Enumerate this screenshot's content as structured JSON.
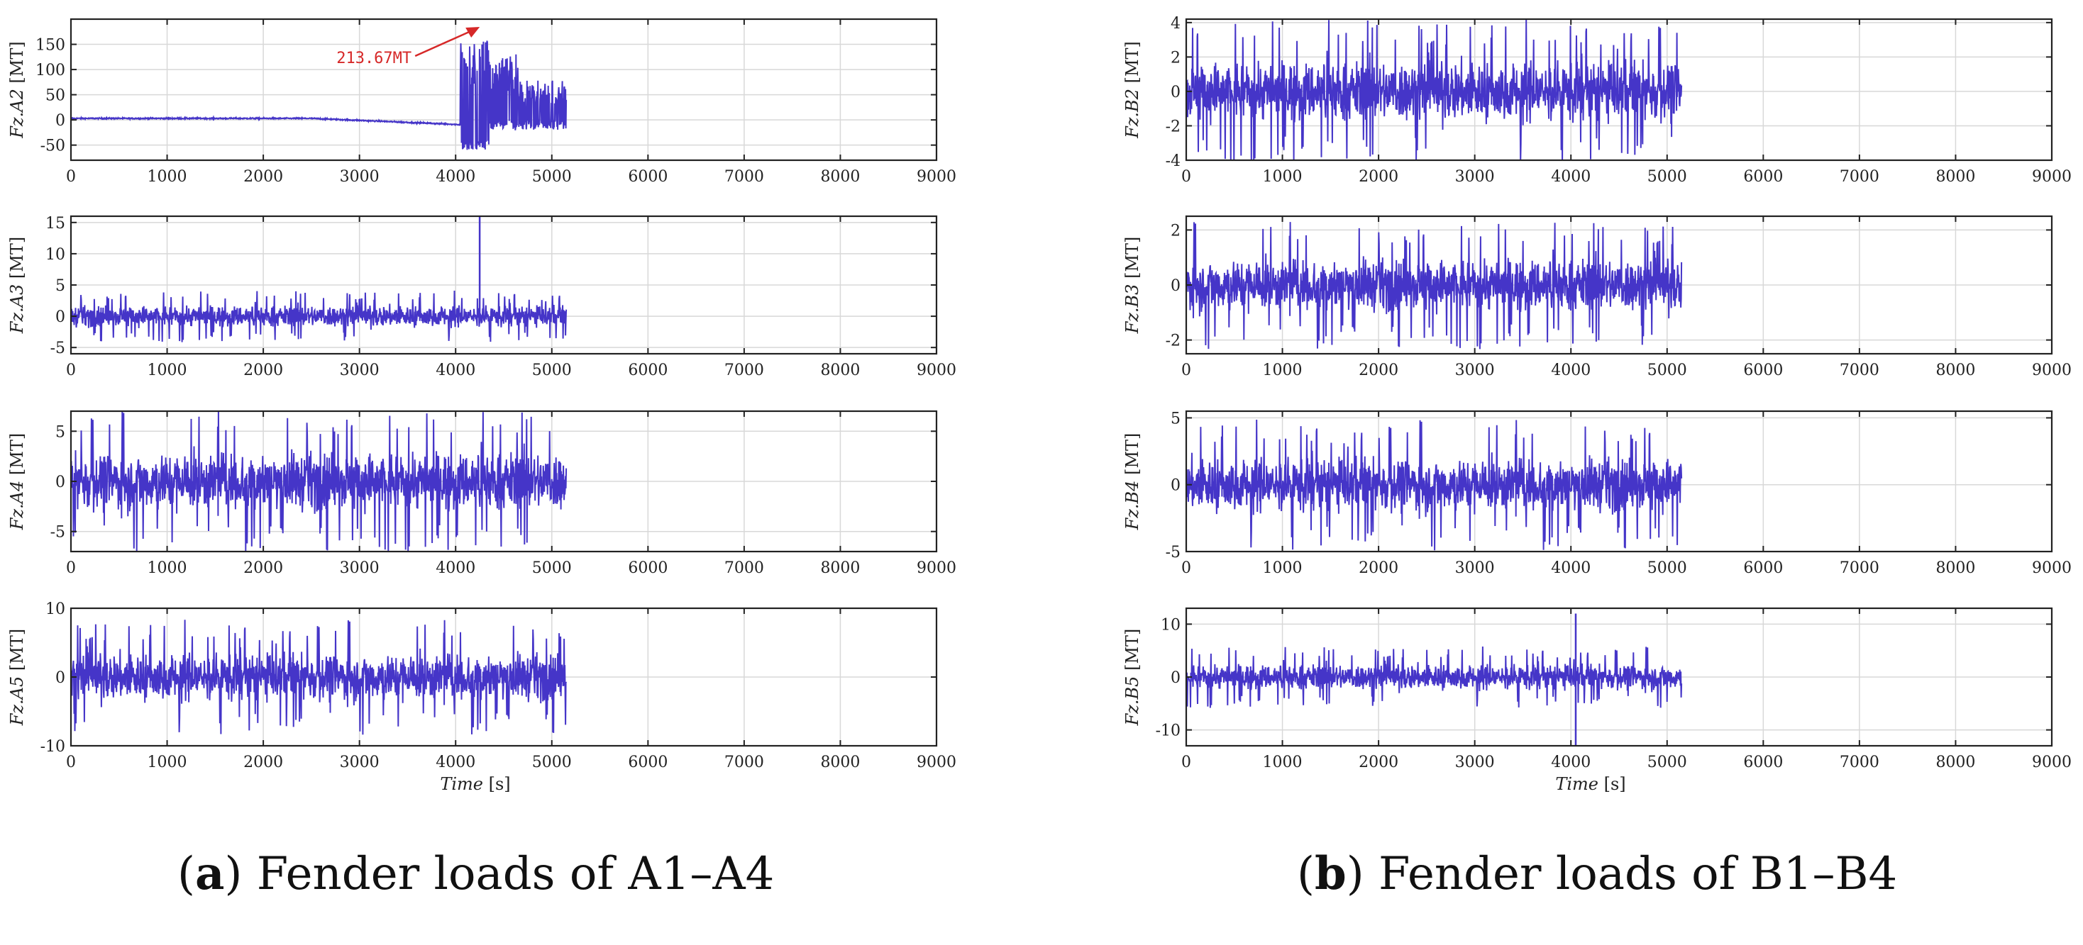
{
  "style": {
    "series_color": "#4535c8",
    "annotation_color": "#d62828",
    "grid_color": "#d8d8d8"
  },
  "captions": [
    {
      "letter": "a",
      "text": ") Fender loads of A1–A4",
      "open": "("
    },
    {
      "letter": "b",
      "text": ") Fender loads of B1–B4",
      "open": "("
    }
  ],
  "chart_data": [
    {
      "type": "line",
      "panel_group": "a",
      "ylabel_prefix": "Fz.",
      "ylabel_id": "A2",
      "ylabel_unit": " [MT]",
      "xlim": [
        0,
        9000
      ],
      "ylim": [
        -80,
        200
      ],
      "xticks": [
        0,
        1000,
        2000,
        3000,
        4000,
        5000,
        6000,
        7000,
        8000,
        9000
      ],
      "yticks": [
        -50,
        0,
        50,
        100,
        150
      ],
      "series": [
        {
          "data_end": 5150,
          "baseline": [
            [
              0,
              3
            ],
            [
              2500,
              3
            ],
            [
              3900,
              -8
            ],
            [
              4100,
              -10
            ],
            [
              5150,
              -15
            ]
          ],
          "bursts": [
            [
              4050,
              4350,
              -60,
              160
            ],
            [
              4350,
              4650,
              -20,
              130
            ],
            [
              4650,
              5150,
              -20,
              80
            ]
          ],
          "noise": 2.5
        }
      ],
      "annotation": {
        "text": "213.67MT",
        "x": 4280,
        "y": 200
      },
      "xlabel": ""
    },
    {
      "type": "line",
      "panel_group": "a",
      "ylabel_prefix": "Fz.",
      "ylabel_id": "A3",
      "ylabel_unit": " [MT]",
      "xlim": [
        0,
        9000
      ],
      "ylim": [
        -6,
        16
      ],
      "xticks": [
        0,
        1000,
        2000,
        3000,
        4000,
        5000,
        6000,
        7000,
        8000,
        9000
      ],
      "yticks": [
        -5,
        0,
        5,
        10,
        15
      ],
      "series": [
        {
          "data_end": 5150,
          "amp": 3.2,
          "spike": [
            4250,
            16
          ]
        }
      ],
      "xlabel": ""
    },
    {
      "type": "line",
      "panel_group": "a",
      "ylabel_prefix": "Fz.",
      "ylabel_id": "A4",
      "ylabel_unit": " [MT]",
      "xlim": [
        0,
        9000
      ],
      "ylim": [
        -7,
        7
      ],
      "xticks": [
        0,
        1000,
        2000,
        3000,
        4000,
        5000,
        6000,
        7000,
        8000,
        9000
      ],
      "yticks": [
        -5,
        0,
        5
      ],
      "series": [
        {
          "data_end": 5150,
          "amp": 5.5
        }
      ],
      "xlabel": ""
    },
    {
      "type": "line",
      "panel_group": "a",
      "ylabel_prefix": "Fz.",
      "ylabel_id": "A5",
      "ylabel_unit": " [MT]",
      "xlim": [
        0,
        9000
      ],
      "ylim": [
        -10,
        10
      ],
      "xticks": [
        0,
        1000,
        2000,
        3000,
        4000,
        5000,
        6000,
        7000,
        8000,
        9000
      ],
      "yticks": [
        -10,
        0,
        10
      ],
      "series": [
        {
          "data_end": 5150,
          "amp": 6.5
        }
      ],
      "xlabel": "Time",
      "xlabel_unit": " [s]"
    },
    {
      "type": "line",
      "panel_group": "b",
      "ylabel_prefix": "Fz.",
      "ylabel_id": "B2",
      "ylabel_unit": " [MT]",
      "xlim": [
        0,
        9000
      ],
      "ylim": [
        -4,
        4.2
      ],
      "xticks": [
        0,
        1000,
        2000,
        3000,
        4000,
        5000,
        6000,
        7000,
        8000,
        9000
      ],
      "yticks": [
        -4,
        -2,
        0,
        2,
        4
      ],
      "series": [
        {
          "data_end": 5150,
          "amp": 3.3
        }
      ],
      "xlabel": ""
    },
    {
      "type": "line",
      "panel_group": "b",
      "ylabel_prefix": "Fz.",
      "ylabel_id": "B3",
      "ylabel_unit": " [MT]",
      "xlim": [
        0,
        9000
      ],
      "ylim": [
        -2.5,
        2.5
      ],
      "xticks": [
        0,
        1000,
        2000,
        3000,
        4000,
        5000,
        6000,
        7000,
        8000,
        9000
      ],
      "yticks": [
        -2,
        0,
        2
      ],
      "series": [
        {
          "data_end": 5150,
          "amp": 1.8
        }
      ],
      "xlabel": ""
    },
    {
      "type": "line",
      "panel_group": "b",
      "ylabel_prefix": "Fz.",
      "ylabel_id": "B4",
      "ylabel_unit": " [MT]",
      "xlim": [
        0,
        9000
      ],
      "ylim": [
        -5,
        5.5
      ],
      "xticks": [
        0,
        1000,
        2000,
        3000,
        4000,
        5000,
        6000,
        7000,
        8000,
        9000
      ],
      "yticks": [
        -5,
        0,
        5
      ],
      "series": [
        {
          "data_end": 5150,
          "amp": 3.8
        }
      ],
      "xlabel": ""
    },
    {
      "type": "line",
      "panel_group": "b",
      "ylabel_prefix": "Fz.",
      "ylabel_id": "B5",
      "ylabel_unit": " [MT]",
      "xlim": [
        0,
        9000
      ],
      "ylim": [
        -13,
        13
      ],
      "xticks": [
        0,
        1000,
        2000,
        3000,
        4000,
        5000,
        6000,
        7000,
        8000,
        9000
      ],
      "yticks": [
        -10,
        0,
        10
      ],
      "series": [
        {
          "data_end": 5150,
          "amp": 4.5,
          "spike": [
            4050,
            12
          ],
          "spike_low": [
            4050,
            -13
          ]
        }
      ],
      "xlabel": "Time",
      "xlabel_unit": " [s]"
    }
  ]
}
